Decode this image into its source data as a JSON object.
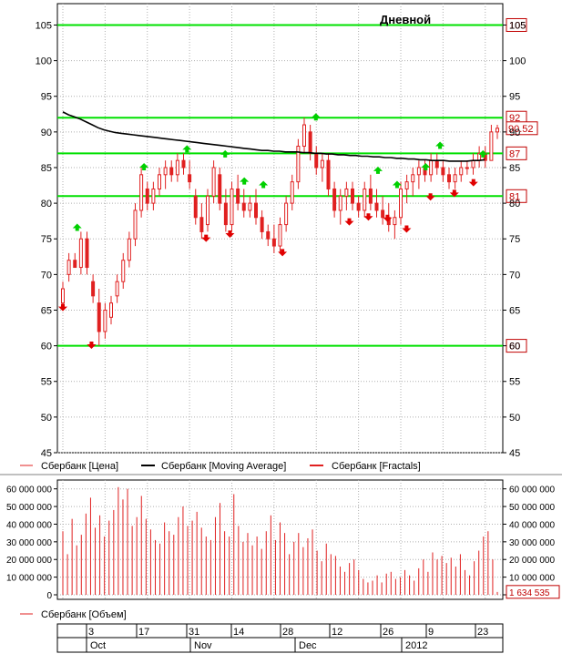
{
  "chart_data": [
    {
      "type": "line",
      "title": "Дневной",
      "ylim": [
        45,
        108
      ],
      "y_ticks": [
        45,
        50,
        55,
        60,
        65,
        70,
        75,
        80,
        85,
        90,
        95,
        100,
        105
      ],
      "grid": true,
      "levels": [
        {
          "value": 105,
          "label": "105"
        },
        {
          "value": 92,
          "label": "92"
        },
        {
          "value": 87,
          "label": "87"
        },
        {
          "value": 81,
          "label": "81"
        },
        {
          "value": 60,
          "label": "60"
        }
      ],
      "last_price_label": "90.52",
      "last_price": 90.52,
      "legend": [
        {
          "label": "Сбербанк [Цена]",
          "color": "#e02020"
        },
        {
          "label": "Сбербанк [Moving Average]",
          "color": "#000000"
        },
        {
          "label": "Сбербанк [Fractals]",
          "color": "#e02020"
        }
      ],
      "series": [
        {
          "name": "Сбербанк [Цена]",
          "kind": "candlestick",
          "ohlc": [
            [
              66,
              69,
              65,
              68
            ],
            [
              70,
              73,
              69,
              72
            ],
            [
              72,
              73,
              71,
              71
            ],
            [
              71,
              76,
              70,
              75
            ],
            [
              75,
              76,
              70,
              71
            ],
            [
              69,
              70,
              66,
              67
            ],
            [
              66,
              68,
              60,
              62
            ],
            [
              62,
              66,
              61,
              65
            ],
            [
              64,
              67,
              63,
              66
            ],
            [
              67,
              70,
              66,
              69
            ],
            [
              69,
              73,
              68,
              72
            ],
            [
              72,
              76,
              71,
              75
            ],
            [
              75,
              80,
              74,
              79
            ],
            [
              79,
              85,
              78,
              84
            ],
            [
              82,
              83,
              79,
              80
            ],
            [
              80,
              83,
              79,
              82
            ],
            [
              82,
              85,
              81,
              84
            ],
            [
              84,
              86,
              82,
              85
            ],
            [
              85,
              86,
              83,
              84
            ],
            [
              84,
              87,
              83,
              86
            ],
            [
              86,
              87,
              84,
              85
            ],
            [
              84,
              86,
              82,
              83
            ],
            [
              81,
              82,
              77,
              78
            ],
            [
              78,
              80,
              75,
              76
            ],
            [
              77,
              82,
              76,
              81
            ],
            [
              81,
              86,
              80,
              85
            ],
            [
              84,
              85,
              79,
              80
            ],
            [
              80,
              82,
              76,
              77
            ],
            [
              77,
              83,
              76,
              82
            ],
            [
              82,
              84,
              79,
              80
            ],
            [
              80,
              82,
              78,
              79
            ],
            [
              79,
              81,
              78,
              80
            ],
            [
              80,
              82,
              77,
              78
            ],
            [
              78,
              79,
              75,
              76
            ],
            [
              76,
              77,
              74,
              75
            ],
            [
              75,
              77,
              73,
              74
            ],
            [
              74,
              78,
              73,
              77
            ],
            [
              77,
              81,
              76,
              80
            ],
            [
              80,
              84,
              79,
              83
            ],
            [
              83,
              89,
              82,
              88
            ],
            [
              88,
              92,
              87,
              91
            ],
            [
              90,
              91,
              86,
              87
            ],
            [
              87,
              88,
              84,
              85
            ],
            [
              85,
              87,
              83,
              86
            ],
            [
              86,
              87,
              81,
              82
            ],
            [
              82,
              83,
              78,
              79
            ],
            [
              79,
              82,
              77,
              81
            ],
            [
              81,
              83,
              79,
              82
            ],
            [
              82,
              83,
              79,
              80
            ],
            [
              80,
              81,
              78,
              79
            ],
            [
              79,
              83,
              78,
              82
            ],
            [
              82,
              84,
              79,
              80
            ],
            [
              80,
              82,
              78,
              79
            ],
            [
              79,
              81,
              77,
              78
            ],
            [
              78,
              80,
              76,
              77
            ],
            [
              77,
              79,
              75,
              78
            ],
            [
              78,
              83,
              77,
              82
            ],
            [
              82,
              84,
              80,
              83
            ],
            [
              83,
              85,
              81,
              84
            ],
            [
              84,
              86,
              82,
              85
            ],
            [
              85,
              86,
              83,
              84
            ],
            [
              84,
              87,
              83,
              86
            ],
            [
              86,
              87,
              84,
              85
            ],
            [
              85,
              86,
              83,
              84
            ],
            [
              84,
              85,
              82,
              83
            ],
            [
              83,
              85,
              82,
              84
            ],
            [
              84,
              86,
              83,
              85
            ],
            [
              85,
              86,
              84,
              85
            ],
            [
              85,
              87,
              84,
              86
            ],
            [
              86,
              88,
              85,
              87
            ],
            [
              87,
              88,
              85,
              86
            ],
            [
              86,
              91,
              86,
              90
            ],
            [
              90,
              91,
              89,
              90.52
            ]
          ]
        },
        {
          "name": "Сбербанк [Moving Average]",
          "kind": "line",
          "values": [
            92.8,
            92.4,
            92.1,
            91.8,
            91.4,
            91.0,
            90.6,
            90.3,
            90.1,
            89.9,
            89.8,
            89.7,
            89.6,
            89.5,
            89.4,
            89.3,
            89.2,
            89.1,
            89.0,
            88.9,
            88.8,
            88.7,
            88.6,
            88.5,
            88.4,
            88.3,
            88.2,
            88.1,
            88.0,
            87.9,
            87.8,
            87.7,
            87.6,
            87.5,
            87.4,
            87.4,
            87.3,
            87.3,
            87.2,
            87.2,
            87.2,
            87.1,
            87.1,
            87.0,
            87.0,
            86.9,
            86.9,
            86.8,
            86.8,
            86.7,
            86.7,
            86.6,
            86.6,
            86.5,
            86.5,
            86.4,
            86.4,
            86.3,
            86.3,
            86.2,
            86.2,
            86.1,
            86.1,
            86.0,
            86.0,
            86.0,
            85.9,
            85.9,
            85.9,
            85.9,
            86.0,
            86.0,
            86.1
          ]
        },
        {
          "name": "Сбербанк [Fractals]",
          "kind": "markers",
          "up": [
            [
              3,
              76.5
            ],
            [
              17,
              85
            ],
            [
              26,
              87.5
            ],
            [
              34,
              86.8
            ],
            [
              38,
              83
            ],
            [
              42,
              82.5
            ],
            [
              53,
              92
            ],
            [
              66,
              84.5
            ],
            [
              70,
              82.5
            ],
            [
              76,
              85
            ],
            [
              79,
              88
            ],
            [
              88,
              86.8
            ]
          ],
          "down": [
            [
              0,
              65.5
            ],
            [
              6,
              60.2
            ],
            [
              30,
              75.2
            ],
            [
              35,
              75.8
            ],
            [
              46,
              73.2
            ],
            [
              60,
              77.5
            ],
            [
              64,
              78.2
            ],
            [
              68,
              78
            ],
            [
              72,
              76.5
            ],
            [
              77,
              81
            ],
            [
              82,
              81.5
            ],
            [
              86,
              83
            ]
          ]
        }
      ]
    },
    {
      "type": "bar",
      "title": "",
      "ylim": [
        0,
        65000000
      ],
      "y_ticks": [
        0,
        10000000,
        20000000,
        30000000,
        40000000,
        50000000,
        60000000
      ],
      "y_tick_labels": [
        "0",
        "10 000 000",
        "20 000 000",
        "30 000 000",
        "40 000 000",
        "50 000 000",
        "60 000 000"
      ],
      "last_value_label": "1 634 535",
      "last_value": 1634535,
      "legend": [
        {
          "label": "Сбербанк [Объем]",
          "color": "#e02020"
        }
      ],
      "series": [
        {
          "name": "Сбербанк [Объем]",
          "values": [
            36000000,
            23000000,
            43000000,
            28000000,
            34000000,
            46000000,
            55000000,
            38000000,
            45000000,
            33000000,
            42000000,
            48000000,
            61000000,
            54000000,
            60000000,
            39000000,
            44000000,
            56000000,
            43000000,
            37000000,
            31000000,
            29000000,
            41000000,
            36000000,
            34000000,
            44000000,
            50000000,
            39000000,
            42000000,
            47000000,
            38000000,
            33000000,
            31000000,
            44000000,
            52000000,
            36000000,
            33000000,
            57000000,
            39000000,
            30000000,
            35000000,
            28000000,
            33000000,
            26000000,
            36000000,
            45000000,
            31000000,
            41000000,
            35000000,
            23000000,
            30000000,
            35000000,
            27000000,
            32000000,
            37000000,
            25000000,
            19000000,
            29000000,
            23000000,
            22000000,
            16000000,
            13000000,
            18000000,
            20000000,
            14000000,
            9000000,
            7000000,
            8000000,
            11000000,
            7000000,
            12000000,
            13000000,
            9000000,
            10000000,
            14000000,
            11000000,
            8000000,
            15000000,
            20000000,
            13000000,
            24000000,
            20000000,
            22000000,
            18000000,
            21000000,
            16000000,
            23000000,
            14000000,
            11000000,
            19000000,
            25000000,
            33000000,
            36000000,
            20000000,
            1634535
          ]
        }
      ]
    }
  ],
  "timeline": {
    "day_labels": [
      "3",
      "17",
      "31",
      "14",
      "28",
      "12",
      "26",
      "9",
      "23"
    ],
    "month_labels": [
      "Oct",
      "Nov",
      "Dec",
      "2012"
    ]
  }
}
